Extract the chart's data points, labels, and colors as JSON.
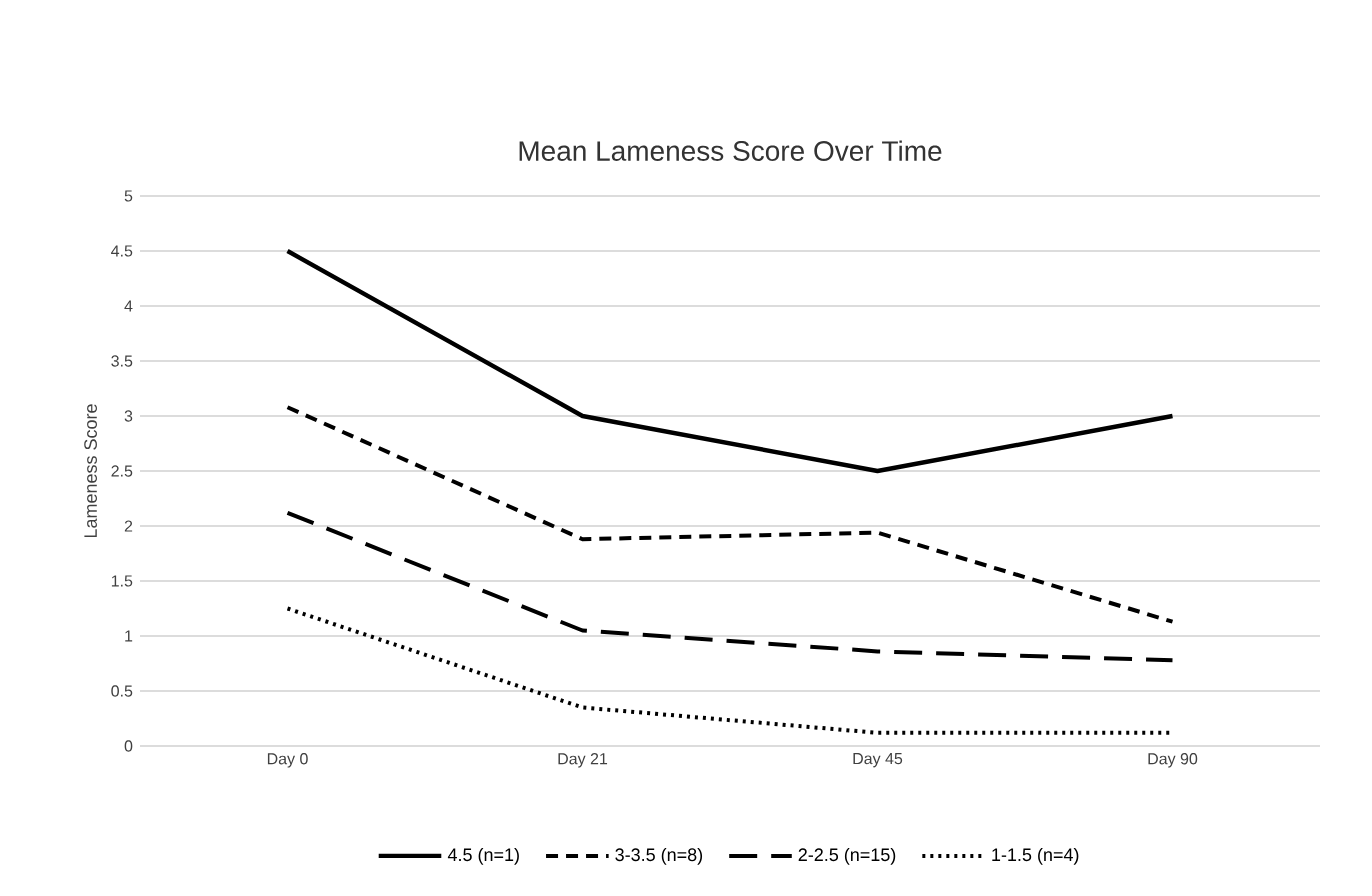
{
  "chart_data": {
    "type": "line",
    "title": "Mean Lameness Score Over Time",
    "ylabel": "Lameness Score",
    "categories": [
      "Day 0",
      "Day 21",
      "Day 45",
      "Day 90"
    ],
    "series": [
      {
        "name": "4.5 (n=1)",
        "color": "#000000",
        "line_style": "solid",
        "values": [
          4.5,
          3.0,
          2.5,
          3.0
        ]
      },
      {
        "name": "3-3.5 (n=8)",
        "color": "#000000",
        "line_style": "dashed",
        "values": [
          3.08,
          1.88,
          1.94,
          1.13
        ]
      },
      {
        "name": "2-2.5 (n=15)",
        "color": "#000000",
        "line_style": "longdashed",
        "values": [
          2.12,
          1.05,
          0.86,
          0.78
        ]
      },
      {
        "name": "1-1.5 (n=4)",
        "color": "#000000",
        "line_style": "dotted",
        "values": [
          1.25,
          0.35,
          0.12,
          0.12
        ]
      }
    ],
    "ylim": [
      0,
      5
    ],
    "yticks": [
      0,
      0.5,
      1,
      1.5,
      2,
      2.5,
      3,
      3.5,
      4,
      4.5,
      5
    ],
    "grid": "y",
    "legend": "bottom",
    "marker": "none"
  }
}
